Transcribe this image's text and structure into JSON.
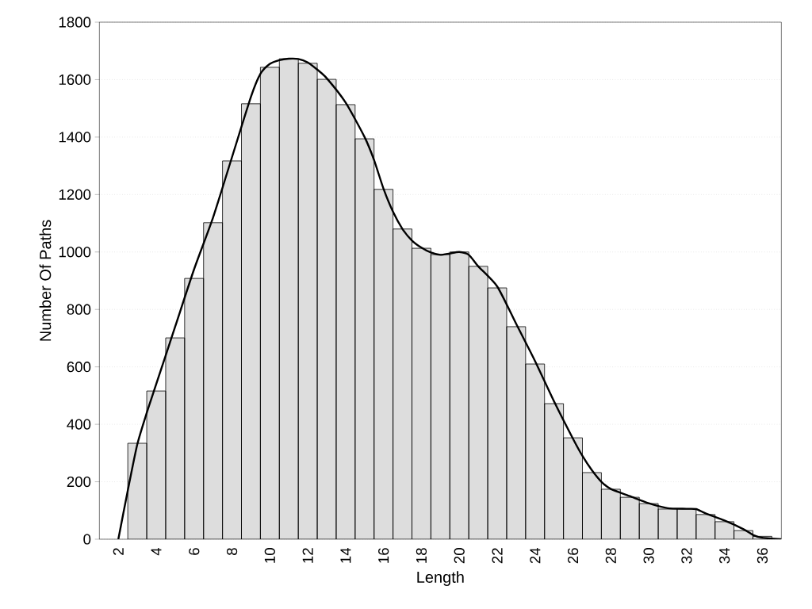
{
  "chart_data": {
    "type": "histogram",
    "xlabel": "Length",
    "ylabel": "Number Of Paths",
    "bins": [
      2.5,
      3.5,
      4.5,
      5.5,
      6.5,
      7.5,
      8.5,
      9.5,
      10.5,
      11.5,
      12.5,
      13.5,
      14.5,
      15.5,
      16.5,
      17.5,
      18.5,
      19.5,
      20.5,
      21.5,
      22.5,
      23.5,
      24.5,
      25.5,
      26.5,
      27.5,
      28.5,
      29.5,
      30.5,
      31.5,
      32.5,
      33.5,
      34.5,
      35.5,
      36.5
    ],
    "series": [
      {
        "color": "#dddddd",
        "values": [
          334,
          516,
          701,
          908,
          1102,
          1317,
          1516,
          1643,
          1673,
          1657,
          1601,
          1513,
          1394,
          1218,
          1080,
          1013,
          991,
          1000,
          950,
          875,
          740,
          610,
          472,
          353,
          232,
          174,
          146,
          124,
          105,
          105,
          86,
          61,
          30,
          10
        ]
      },
      {
        "type": "line",
        "color": "#000000",
        "x": [
          2,
          2.5,
          3,
          3.5,
          4,
          5,
          6,
          7,
          8,
          9,
          9.5,
          10,
          10.5,
          11,
          11.5,
          12,
          12.5,
          13,
          14,
          15,
          15.5,
          16,
          16.5,
          17,
          17.5,
          18,
          18.5,
          19,
          19.5,
          20,
          20.5,
          21,
          22,
          23,
          24,
          25,
          26,
          26.5,
          27,
          27.5,
          28,
          29,
          30,
          31,
          32,
          32.5,
          33,
          34,
          35,
          35.5,
          36,
          37
        ],
        "values": [
          0,
          170,
          330,
          440,
          540,
          740,
          940,
          1120,
          1330,
          1540,
          1620,
          1655,
          1668,
          1673,
          1672,
          1660,
          1635,
          1605,
          1520,
          1400,
          1320,
          1220,
          1140,
          1080,
          1040,
          1015,
          998,
          990,
          995,
          1000,
          990,
          950,
          880,
          750,
          620,
          480,
          350,
          290,
          240,
          200,
          175,
          150,
          125,
          108,
          106,
          105,
          90,
          65,
          35,
          15,
          5,
          0
        ]
      }
    ],
    "xlim": [
      1,
      37
    ],
    "ylim": [
      0,
      1800
    ],
    "xticks": [
      2,
      4,
      6,
      8,
      10,
      12,
      14,
      16,
      18,
      20,
      22,
      24,
      26,
      28,
      30,
      32,
      34,
      36
    ],
    "yticks": [
      0,
      200,
      400,
      600,
      800,
      1000,
      1200,
      1400,
      1600,
      1800
    ],
    "grid": "y"
  }
}
